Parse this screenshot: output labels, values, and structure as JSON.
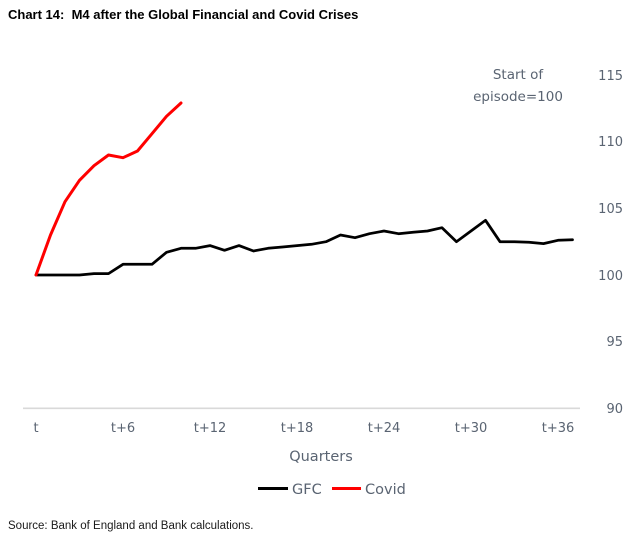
{
  "title": "Chart 14:  M4 after the Global Financial and Covid Crises",
  "source": "Source: Bank of England and Bank calculations.",
  "annotation": {
    "line1": "Start of",
    "line2": "episode=100"
  },
  "chart_data": {
    "type": "line",
    "title": "M4 after the Global Financial and Covid Crises",
    "xlabel": "Quarters",
    "ylabel": "Start of episode=100",
    "x_tick_labels": [
      "t",
      "t+6",
      "t+12",
      "t+18",
      "t+24",
      "t+30",
      "t+36"
    ],
    "x_tick_quarters": [
      0,
      6,
      12,
      18,
      24,
      30,
      36
    ],
    "y_tick_labels": [
      "115",
      "110",
      "105",
      "100",
      "95",
      "90"
    ],
    "ylim": [
      90,
      115
    ],
    "grid": false,
    "legend_position": "bottom",
    "axis_color": "#d9d9d9",
    "text_color": "#5a6472",
    "series": [
      {
        "name": "GFC",
        "color": "#000000",
        "stroke_width": 2.75,
        "x_start_quarter": 0,
        "values": [
          100,
          100,
          100,
          100,
          100.1,
          100.1,
          100.8,
          100.8,
          100.8,
          101.7,
          102.0,
          102.0,
          102.2,
          101.85,
          102.2,
          101.8,
          102.0,
          102.1,
          102.2,
          102.3,
          102.5,
          103.0,
          102.8,
          103.1,
          103.3,
          103.1,
          103.2,
          103.3,
          103.55,
          102.5,
          103.3,
          104.1,
          102.5,
          102.5,
          102.45,
          102.35,
          102.6,
          102.65
        ]
      },
      {
        "name": "Covid",
        "color": "#ff0000",
        "stroke_width": 3,
        "x_start_quarter": 0,
        "values": [
          100,
          103.0,
          105.5,
          107.1,
          108.2,
          109.0,
          108.8,
          109.3,
          110.6,
          111.9,
          112.9
        ]
      }
    ]
  }
}
